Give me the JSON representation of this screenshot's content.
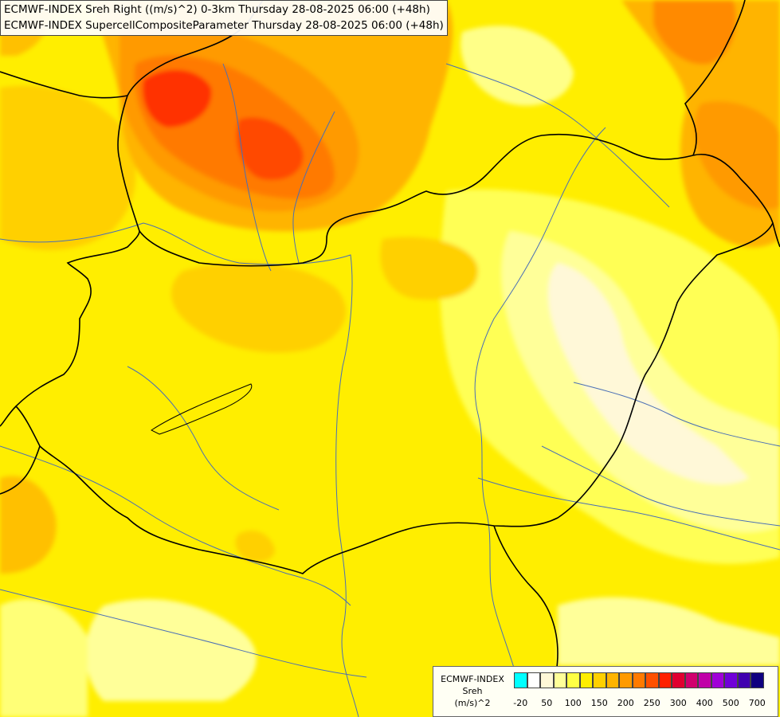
{
  "header": {
    "line1": "ECMWF-INDEX Sreh Right ((m/s)^2) 0-3km Thursday 28-08-2025 06:00 (+48h)",
    "line2": "ECMWF-INDEX SupercellCompositeParameter Thursday 28-08-2025 06:00 (+48h)"
  },
  "map": {
    "background_color": "#ffee00",
    "border_color": "#000000",
    "river_color": "#4a6fb5"
  },
  "legend": {
    "title1": "ECMWF-INDEX",
    "title2": "Sreh",
    "unit": "(m/s)^2",
    "colors": [
      "#00ffff",
      "#ffffff",
      "#fff8d8",
      "#ffff99",
      "#ffff44",
      "#ffee00",
      "#ffd000",
      "#ffb400",
      "#ff9a00",
      "#ff7a00",
      "#ff5000",
      "#ff2000",
      "#e00030",
      "#d0006e",
      "#c000a8",
      "#a000d8",
      "#7000d8",
      "#4000b0",
      "#100080"
    ],
    "ticks": [
      "-20",
      "50",
      "100",
      "150",
      "200",
      "250",
      "300",
      "400",
      "500",
      "700"
    ]
  }
}
